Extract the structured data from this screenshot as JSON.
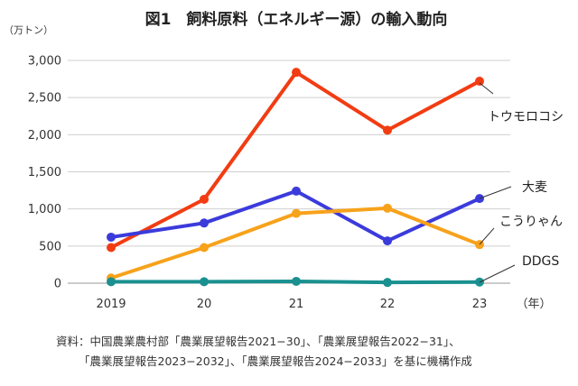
{
  "chart_data": {
    "type": "line",
    "title": "図1　飼料原料（エネルギー源）の輸入動向",
    "unit_label": "（万トン）",
    "x_unit_label": "（年）",
    "categories": [
      "2019",
      "20",
      "21",
      "22",
      "23"
    ],
    "ylim": [
      0,
      3000
    ],
    "yticks": [
      0,
      500,
      1000,
      1500,
      2000,
      2500,
      3000
    ],
    "ytick_labels": [
      "0",
      "500",
      "1,000",
      "1,500",
      "2,000",
      "2,500",
      "3,000"
    ],
    "grid": true,
    "series": [
      {
        "name": "トウモロコシ",
        "color": "#f23c12",
        "values": [
          480,
          1130,
          2840,
          2060,
          2720
        ]
      },
      {
        "name": "大麦",
        "color": "#3b3bdc",
        "values": [
          620,
          810,
          1240,
          570,
          1140
        ]
      },
      {
        "name": "こうりゃん",
        "color": "#f7a21b",
        "values": [
          70,
          480,
          940,
          1010,
          520
        ]
      },
      {
        "name": "DDGS",
        "color": "#1a9090",
        "values": [
          20,
          20,
          25,
          10,
          15
        ]
      }
    ]
  },
  "source": {
    "line1": "資料：中国農業農村部「農業展望報告2021−30」、「農業展望報告2022−31」、",
    "line2": "「農業展望報告2023−2032」、「農業展望報告2024−2033」を基に機構作成"
  }
}
